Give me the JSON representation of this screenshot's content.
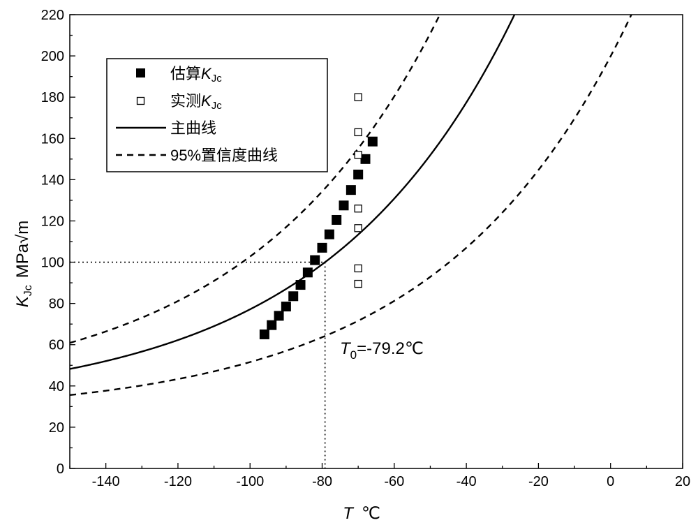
{
  "chart_data": {
    "type": "scatter",
    "xlim": [
      -150,
      20
    ],
    "ylim": [
      0,
      220
    ],
    "x_ticks": [
      -140,
      -120,
      -100,
      -80,
      -60,
      -40,
      -20,
      0,
      20
    ],
    "y_ticks": [
      0,
      20,
      40,
      60,
      80,
      100,
      120,
      140,
      160,
      180,
      200,
      220
    ],
    "x_tick_labels": [
      "-140",
      "-120",
      "-100",
      "-80",
      "-60",
      "-40",
      "-20",
      "0",
      "20"
    ],
    "y_tick_labels": [
      "0",
      "20",
      "40",
      "60",
      "80",
      "100",
      "120",
      "140",
      "160",
      "180",
      "200",
      "220"
    ],
    "xlabel": {
      "var": "T",
      "unit": "℃"
    },
    "ylabel": {
      "var": "K",
      "sub": "Jc",
      "unit": "MPa√m"
    },
    "legend_position": "top-left",
    "legend": [
      {
        "prefix": "估算",
        "var": "K",
        "sub": "Jc",
        "style": "filled-square"
      },
      {
        "prefix": "实测",
        "var": "K",
        "sub": "Jc",
        "style": "open-square"
      },
      {
        "prefix": "主曲线",
        "var": "",
        "sub": "",
        "style": "solid-line"
      },
      {
        "prefix": "95%置信度曲线",
        "var": "",
        "sub": "",
        "style": "dashed-line"
      }
    ],
    "annotation": {
      "var": "T",
      "sub": "0",
      "text": "=-79.2℃"
    },
    "reference": {
      "T0": -79.2,
      "K": 100
    },
    "master_curve": {
      "A": 30,
      "B": 70,
      "C": 0.019
    },
    "upper_bound": {
      "A": 34.5,
      "B": 101.3,
      "C": 0.019
    },
    "lower_bound": {
      "A": 25.5,
      "B": 38.7,
      "C": 0.019
    },
    "series": [
      {
        "name": "估算KJc",
        "marker": "filled-square",
        "x": [
          -96,
          -94,
          -92,
          -90,
          -88,
          -86,
          -84,
          -82,
          -80,
          -78,
          -76,
          -74,
          -72,
          -70,
          -68,
          -66
        ],
        "y": [
          65,
          69.5,
          74,
          78.5,
          83.5,
          89,
          95,
          101,
          107,
          113.5,
          120.5,
          127.5,
          135,
          142.5,
          150,
          158.5
        ]
      },
      {
        "name": "实测KJc",
        "marker": "open-square",
        "x": [
          -70,
          -70,
          -70,
          -70,
          -70,
          -70,
          -70
        ],
        "y": [
          180,
          163,
          152,
          126,
          116.5,
          97,
          89.5
        ]
      }
    ]
  }
}
